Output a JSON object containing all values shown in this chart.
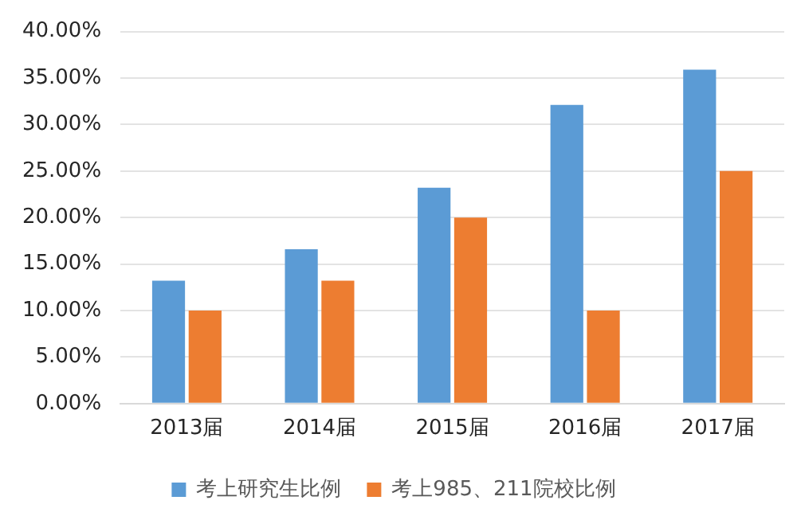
{
  "chart_data": {
    "type": "bar",
    "categories": [
      "2013届",
      "2014届",
      "2015届",
      "2016届",
      "2017届"
    ],
    "series": [
      {
        "name": "考上研究生比例",
        "color": "#5b9bd5",
        "values": [
          13.2,
          16.6,
          23.2,
          32.1,
          35.9
        ]
      },
      {
        "name": "考上985、211院校比例",
        "color": "#ed7d31",
        "values": [
          10,
          13.2,
          20,
          10,
          25
        ]
      }
    ],
    "ylim": [
      0,
      40
    ],
    "yticks": [
      {
        "value": 0,
        "label": "0.00%"
      },
      {
        "value": 5,
        "label": "5.00%"
      },
      {
        "value": 10,
        "label": "10.00%"
      },
      {
        "value": 15,
        "label": "15.00%"
      },
      {
        "value": 20,
        "label": "20.00%"
      },
      {
        "value": 25,
        "label": "25.00%"
      },
      {
        "value": 30,
        "label": "30.00%"
      },
      {
        "value": 35,
        "label": "35.00%"
      },
      {
        "value": 40,
        "label": "40.00%"
      }
    ],
    "grid": "y",
    "legend": "bottom"
  }
}
